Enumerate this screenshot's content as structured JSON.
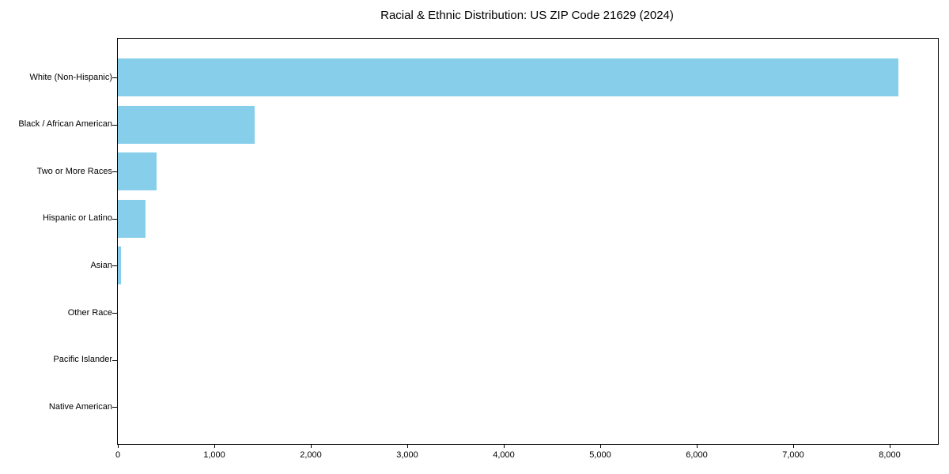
{
  "title": "Racial & Ethnic Distribution: US ZIP Code 21629 (2024)",
  "chart_data": {
    "type": "bar",
    "orientation": "horizontal",
    "title": "Racial & Ethnic Distribution: US ZIP Code 21629 (2024)",
    "categories": [
      "White (Non-Hispanic)",
      "Black / African American",
      "Two or More Races",
      "Hispanic or Latino",
      "Asian",
      "Other Race",
      "Pacific Islander",
      "Native American"
    ],
    "values": [
      8090,
      1420,
      405,
      285,
      30,
      0,
      0,
      0
    ],
    "xlabel": "",
    "ylabel": "",
    "xlim": [
      0,
      8500
    ],
    "xticks": [
      0,
      1000,
      2000,
      3000,
      4000,
      5000,
      6000,
      7000,
      8000
    ],
    "xtick_labels": [
      "0",
      "1,000",
      "2,000",
      "3,000",
      "4,000",
      "5,000",
      "6,000",
      "7,000",
      "8,000"
    ],
    "bar_color": "#87CEEB",
    "axis_color": "#000000",
    "background_color": "#ffffff",
    "grid": false,
    "legend": null
  }
}
